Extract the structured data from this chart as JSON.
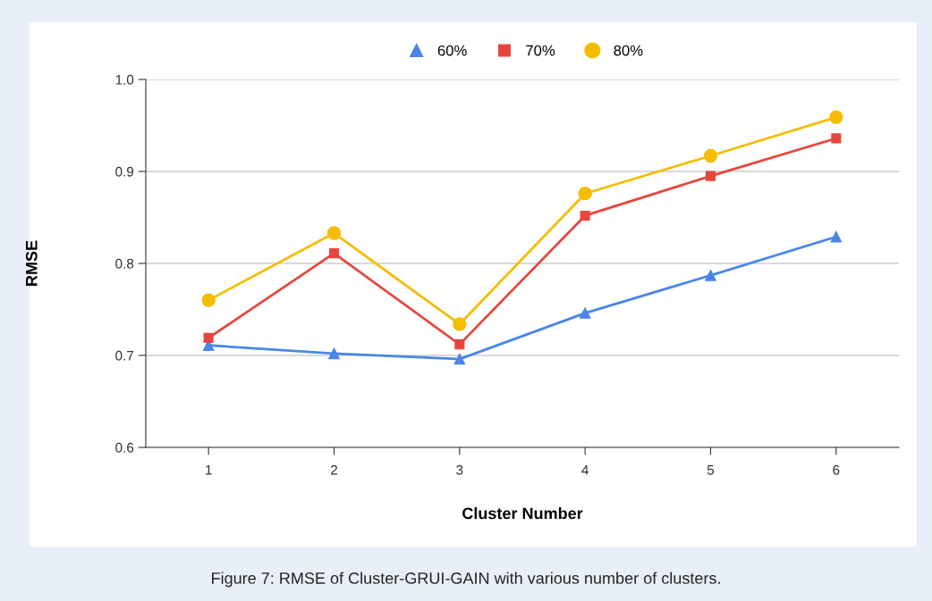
{
  "chart_data": {
    "type": "line",
    "xlabel": "Cluster Number",
    "ylabel": "RMSE",
    "categories": [
      "1",
      "2",
      "3",
      "4",
      "5",
      "6"
    ],
    "series": [
      {
        "name": "60%",
        "color": "#4a86e8",
        "marker": "triangle",
        "values": [
          0.711,
          0.702,
          0.696,
          0.746,
          0.787,
          0.829
        ]
      },
      {
        "name": "70%",
        "color": "#e6463c",
        "marker": "square",
        "values": [
          0.719,
          0.811,
          0.712,
          0.852,
          0.895,
          0.936
        ]
      },
      {
        "name": "80%",
        "color": "#f5bc00",
        "marker": "circle",
        "values": [
          0.76,
          0.833,
          0.734,
          0.876,
          0.917,
          0.959
        ]
      }
    ],
    "ylim": [
      0.6,
      1.0
    ],
    "yticks": [
      {
        "value": 0.6,
        "label": "0.6"
      },
      {
        "value": 0.7,
        "label": "0.7"
      },
      {
        "value": 0.8,
        "label": "0.8"
      },
      {
        "value": 0.9,
        "label": "0.9"
      },
      {
        "value": 1.0,
        "label": "1.0"
      }
    ],
    "grid": "y",
    "legend": "top",
    "line_style": "solid",
    "annotations": [
      "Figure 7: RMSE of Cluster-GRUI-GAIN with various number of clusters."
    ]
  }
}
